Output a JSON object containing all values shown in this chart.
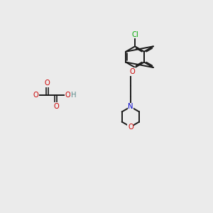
{
  "background_color": "#ebebeb",
  "bond_color": "#1a1a1a",
  "oxygen_color": "#cc0000",
  "nitrogen_color": "#0000cc",
  "chlorine_color": "#00aa00",
  "hydrogen_color": "#5c8a8a",
  "figsize": [
    3.0,
    3.0
  ],
  "dpi": 100,
  "xlim": [
    0,
    10
  ],
  "ylim": [
    0,
    10
  ]
}
